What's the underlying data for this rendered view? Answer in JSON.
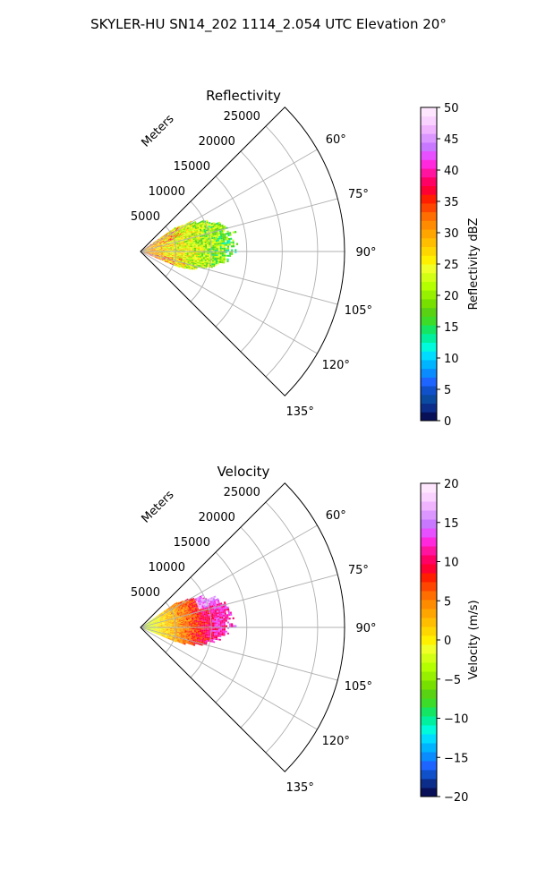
{
  "suptitle": "SKYLER-HU  SN14_202  1114_2.054 UTC Elevation 20°",
  "chart_data": [
    {
      "type": "polar-sector",
      "title": "Reflectivity",
      "radial_axis_label": "Meters",
      "radial_ticks": [
        "5000",
        "10000",
        "15000",
        "20000",
        "25000"
      ],
      "radial_tick_values": [
        5000,
        10000,
        15000,
        20000,
        25000
      ],
      "rmax": 28800,
      "azimuth_range_deg": [
        45,
        135
      ],
      "azimuth_ticks": [
        "60°",
        "75°",
        "90°",
        "105°",
        "120°",
        "135°"
      ],
      "azimuth_tick_values": [
        60,
        75,
        90,
        105,
        120,
        135
      ],
      "grid": true,
      "data_extent": {
        "azimuth_deg": [
          55,
          112
        ],
        "range_m": [
          0,
          14000
        ]
      },
      "colorbar": {
        "label": "Reflectivity dBZ",
        "min": 0,
        "max": 50,
        "ticks": [
          "0",
          "5",
          "10",
          "15",
          "20",
          "25",
          "30",
          "35",
          "40",
          "45",
          "50"
        ],
        "tick_values": [
          0,
          5,
          10,
          15,
          20,
          25,
          30,
          35,
          40,
          45,
          50
        ],
        "colors": [
          "#081058",
          "#0c2d8a",
          "#0a4aa0",
          "#1050c8",
          "#1e64ff",
          "#0a8cff",
          "#00b4ff",
          "#00dcff",
          "#00fadc",
          "#00f0a0",
          "#14e664",
          "#3cdc28",
          "#5ad214",
          "#78e000",
          "#96f000",
          "#b4ff00",
          "#d2ff14",
          "#f0ff28",
          "#fff000",
          "#ffd700",
          "#ffbe00",
          "#ffa500",
          "#ff8c00",
          "#ff6e00",
          "#ff4600",
          "#ff1e00",
          "#ff0032",
          "#ff0064",
          "#ff14a0",
          "#ff28dc",
          "#e650ff",
          "#c878ff",
          "#dc96ff",
          "#f0b4ff",
          "#fad2ff",
          "#ffe6ff"
        ]
      }
    },
    {
      "type": "polar-sector",
      "title": "Velocity",
      "radial_axis_label": "Meters",
      "radial_ticks": [
        "5000",
        "10000",
        "15000",
        "20000",
        "25000"
      ],
      "radial_tick_values": [
        5000,
        10000,
        15000,
        20000,
        25000
      ],
      "rmax": 28800,
      "azimuth_range_deg": [
        45,
        135
      ],
      "azimuth_ticks": [
        "60°",
        "75°",
        "90°",
        "105°",
        "120°",
        "135°"
      ],
      "azimuth_tick_values": [
        60,
        75,
        90,
        105,
        120,
        135
      ],
      "grid": true,
      "data_extent": {
        "azimuth_deg": [
          55,
          112
        ],
        "range_m": [
          0,
          14000
        ]
      },
      "colorbar": {
        "label": "Velocity (m/s)",
        "min": -20,
        "max": 20,
        "ticks": [
          "−20",
          "−15",
          "−10",
          "−5",
          "0",
          "5",
          "10",
          "15",
          "20"
        ],
        "tick_values": [
          -20,
          -15,
          -10,
          -5,
          0,
          5,
          10,
          15,
          20
        ],
        "colors": [
          "#081058",
          "#0c2d8a",
          "#1050c8",
          "#1e64ff",
          "#0a8cff",
          "#00b4ff",
          "#00dcff",
          "#00fadc",
          "#00f0a0",
          "#14e664",
          "#3cdc28",
          "#5ad214",
          "#78e000",
          "#96f000",
          "#b4ff00",
          "#d2ff14",
          "#f0ff28",
          "#fff000",
          "#ffd700",
          "#ffbe00",
          "#ffa500",
          "#ff8c00",
          "#ff6e00",
          "#ff4600",
          "#ff1e00",
          "#ff0032",
          "#ff0064",
          "#ff14a0",
          "#ff28dc",
          "#e650ff",
          "#c878ff",
          "#dc96ff",
          "#f0b4ff",
          "#fad2ff",
          "#ffe6ff"
        ]
      }
    }
  ]
}
